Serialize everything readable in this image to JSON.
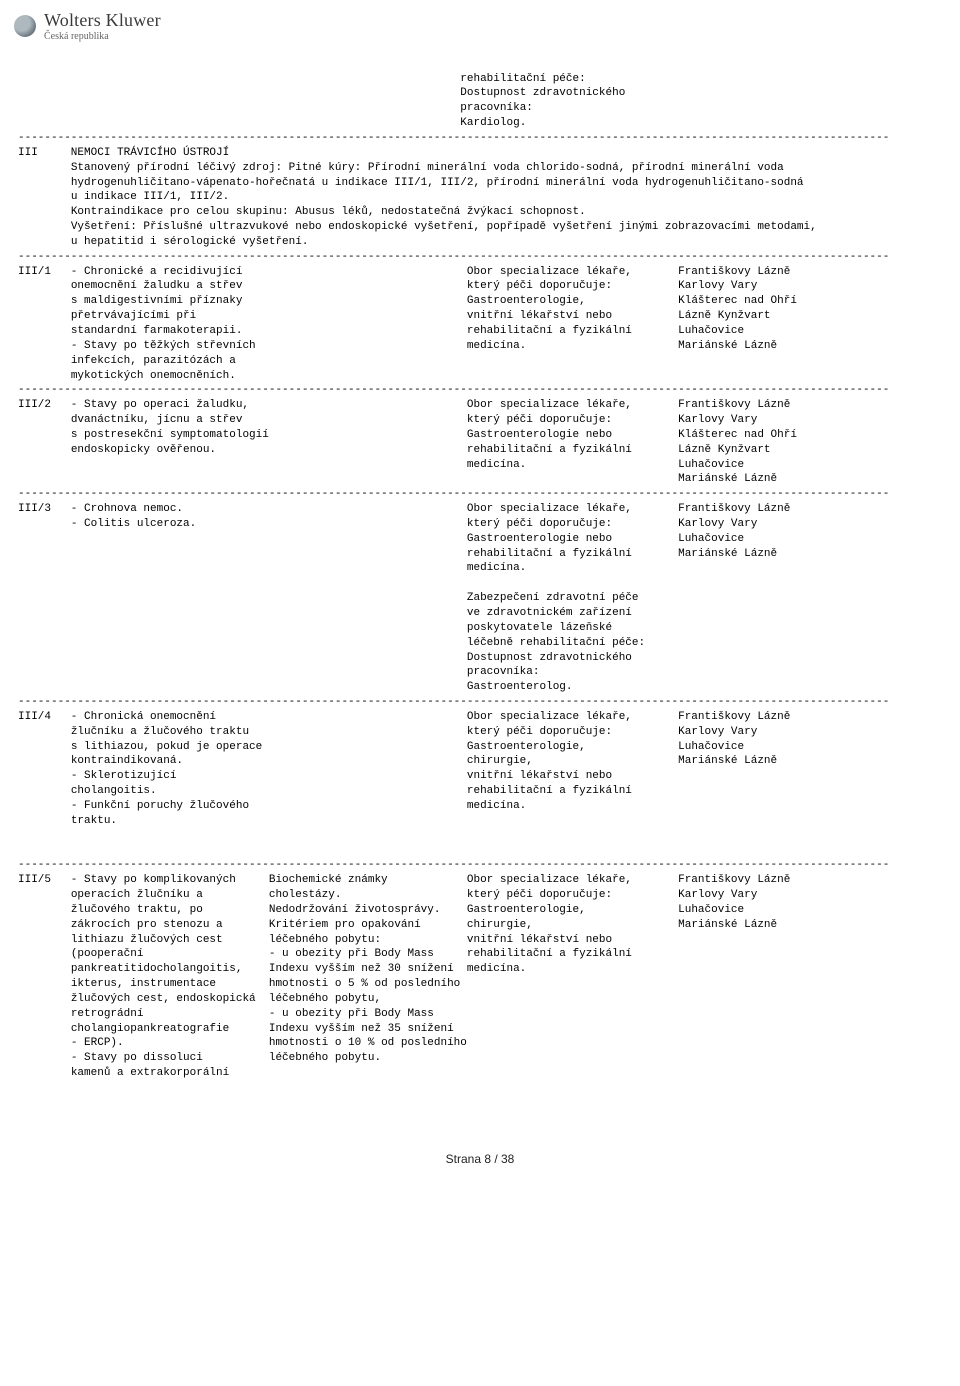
{
  "brand": {
    "main": "Wolters Kluwer",
    "sub": "Česká republika"
  },
  "footer": "Strana 8 / 38",
  "dash": "------------------------------------------------------------------------------------------------------------------------------------",
  "top_block": [
    "                                                                   rehabilitační péče:",
    "                                                                   Dostupnost zdravotnického",
    "                                                                   pracovníka:",
    "                                                                   Kardiolog."
  ],
  "sec_iii": {
    "code": "III",
    "lines": [
      "NEMOCI TRÁVICÍHO ÚSTROJÍ",
      "Stanovený přírodní léčivý zdroj: Pitné kúry: Přírodní minerální voda chlorido-sodná, přírodní minerální voda",
      "hydrogenuhličitano-vápenato-hořečnatá u indikace III/1, III/2, přírodní minerální voda hydrogenuhličitano-sodná",
      "u indikace III/1, III/2.",
      "Kontraindikace pro celou skupinu: Abusus léků, nedostatečná žvýkací schopnost.",
      "Vyšetření: Příslušné ultrazvukové nebo endoskopické vyšetření, popřípadě vyšetření jinými zobrazovacími metodami,",
      "u hepatitid i sérologické vyšetření."
    ]
  },
  "rows": [
    {
      "code": "III/1",
      "c1": [
        "- Chronické a recidivující",
        "onemocnění žaludku a střev",
        "s maldigestivními příznaky",
        "přetrvávajícími při",
        "standardní farmakoterapii.",
        "- Stavy po těžkých střevních",
        "infekcích, parazitózách a",
        "mykotických onemocněních."
      ],
      "c2": [],
      "c3": [
        "Obor specializace lékaře,",
        "který péči doporučuje:",
        "Gastroenterologie,",
        "vnitřní lékařství nebo",
        "rehabilitační a fyzikální",
        "medicína."
      ],
      "c4": [
        "Františkovy Lázně",
        "Karlovy Vary",
        "Klášterec nad Ohří",
        "Lázně Kynžvart",
        "Luhačovice",
        "Mariánské Lázně"
      ]
    },
    {
      "code": "III/2",
      "c1": [
        "- Stavy po operaci žaludku,",
        "dvanáctníku, jícnu a střev",
        "s postresekční symptomatologií",
        "endoskopicky ověřenou."
      ],
      "c2": [],
      "c3": [
        "Obor specializace lékaře,",
        "který péči doporučuje:",
        "Gastroenterologie nebo",
        "rehabilitační a fyzikální",
        "medicína."
      ],
      "c4": [
        "Františkovy Lázně",
        "Karlovy Vary",
        "Klášterec nad Ohří",
        "Lázně Kynžvart",
        "Luhačovice",
        "Mariánské Lázně"
      ]
    },
    {
      "code": "III/3",
      "c1": [
        "- Crohnova nemoc.",
        "- Colitis ulceroza."
      ],
      "c2": [],
      "c3": [
        "Obor specializace lékaře,",
        "který péči doporučuje:",
        "Gastroenterologie nebo",
        "rehabilitační a fyzikální",
        "medicína.",
        "",
        "Zabezpečení zdravotní péče",
        "ve zdravotnickém zařízení",
        "poskytovatele lázeňské",
        "léčebně rehabilitační péče:",
        "Dostupnost zdravotnického",
        "pracovníka:",
        "Gastroenterolog."
      ],
      "c4": [
        "Františkovy Lázně",
        "Karlovy Vary",
        "Luhačovice",
        "Mariánské Lázně"
      ]
    },
    {
      "code": "III/4",
      "c1": [
        "- Chronická onemocnění",
        "žlučníku a žlučového traktu",
        "s lithiazou, pokud je operace",
        "kontraindikovaná.",
        "- Sklerotizující",
        "cholangoitis.",
        "- Funkční poruchy žlučového",
        "traktu."
      ],
      "c2": [],
      "c3": [
        "Obor specializace lékaře,",
        "který péči doporučuje:",
        "Gastroenterologie,",
        "chirurgie,",
        "vnitřní lékařství nebo",
        "rehabilitační a fyzikální",
        "medicína."
      ],
      "c4": [
        "Františkovy Lázně",
        "Karlovy Vary",
        "Luhačovice",
        "Mariánské Lázně"
      ],
      "blank_after": true
    },
    {
      "code": "III/5",
      "c1": [
        "- Stavy po komplikovaných",
        "operacích žlučníku a",
        "žlučového traktu, po",
        "zákrocích pro stenozu a",
        "lithiazu žlučových cest",
        "(pooperační",
        "pankreatitidocholangoitis,",
        "ikterus, instrumentace",
        "žlučových cest, endoskopická",
        "retrográdní",
        "cholangiopankreatografie",
        "- ERCP).",
        "- Stavy po dissoluci",
        "kamenů a extrakorporální"
      ],
      "c2": [
        "Biochemické známky",
        "cholestázy.",
        "Nedodržování životosprávy.",
        "Kritériem pro opakování",
        "léčebného pobytu:",
        "- u obezity při Body Mass",
        "Indexu vyšším než 30 snížení",
        "hmotnosti o 5 % od posledního",
        "léčebného pobytu,",
        "- u obezity při Body Mass",
        "Indexu vyšším než 35 snížení",
        "hmotnosti o 10 % od posledního",
        "léčebného pobytu."
      ],
      "c3": [
        "Obor specializace lékaře,",
        "který péči doporučuje:",
        "Gastroenterologie,",
        "chirurgie,",
        "vnitřní lékařství nebo",
        "rehabilitační a fyzikální",
        "medicína."
      ],
      "c4": [
        "Františkovy Lázně",
        "Karlovy Vary",
        "Luhačovice",
        "Mariánské Lázně"
      ]
    }
  ],
  "cols": {
    "code": 8,
    "c1": 30,
    "c2": 30,
    "c3": 32,
    "c4": 22
  }
}
